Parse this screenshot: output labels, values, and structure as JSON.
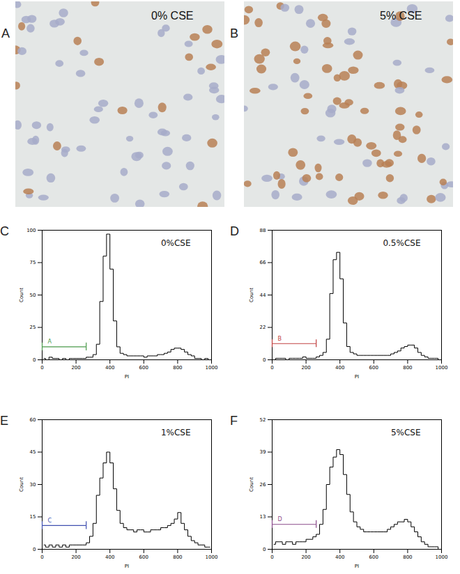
{
  "images": [
    {
      "panel": "A",
      "label": "0% CSE"
    },
    {
      "panel": "B",
      "label": "5% CSE"
    }
  ],
  "chart_data": [
    {
      "panel": "C",
      "type": "line",
      "title": "0%CSE",
      "xlabel": "PI",
      "ylabel": "Count",
      "xlim": [
        0,
        1000
      ],
      "xticks": [
        0,
        200,
        400,
        600,
        800,
        1000
      ],
      "ylim": [
        0,
        100
      ],
      "yticks": [
        0,
        25,
        50,
        75,
        100
      ],
      "x": [
        10,
        30,
        50,
        70,
        90,
        110,
        130,
        150,
        170,
        190,
        210,
        230,
        250,
        270,
        290,
        310,
        330,
        350,
        370,
        390,
        410,
        430,
        450,
        470,
        490,
        510,
        530,
        550,
        570,
        590,
        610,
        630,
        650,
        670,
        690,
        710,
        730,
        750,
        770,
        790,
        810,
        830,
        850,
        870,
        890,
        910,
        930,
        950,
        970,
        990
      ],
      "values": [
        1,
        0,
        2,
        1,
        1,
        0,
        1,
        0,
        1,
        1,
        1,
        1,
        1,
        2,
        2,
        4,
        12,
        45,
        80,
        97,
        70,
        30,
        10,
        5,
        4,
        3,
        3,
        3,
        3,
        3,
        2,
        3,
        3,
        3,
        4,
        4,
        5,
        6,
        8,
        9,
        9,
        8,
        6,
        4,
        3,
        1,
        1,
        0,
        1,
        0
      ],
      "color": "#000000",
      "annotations": [
        {
          "label": "A",
          "x": [
            0,
            260
          ],
          "y": 10,
          "color": "#4a9a4a"
        }
      ]
    },
    {
      "panel": "D",
      "type": "line",
      "title": "0.5%CSE",
      "xlabel": "PI",
      "ylabel": "Count",
      "xlim": [
        0,
        1000
      ],
      "xticks": [
        0,
        200,
        400,
        600,
        800,
        1000
      ],
      "ylim": [
        0,
        88
      ],
      "yticks": [
        0,
        22,
        44,
        66,
        88
      ],
      "x": [
        10,
        30,
        50,
        70,
        90,
        110,
        130,
        150,
        170,
        190,
        210,
        230,
        250,
        270,
        290,
        310,
        330,
        350,
        370,
        390,
        410,
        430,
        450,
        470,
        490,
        510,
        530,
        550,
        570,
        590,
        610,
        630,
        650,
        670,
        690,
        710,
        730,
        750,
        770,
        790,
        810,
        830,
        850,
        870,
        890,
        910,
        930,
        950,
        970,
        990
      ],
      "values": [
        0,
        1,
        1,
        1,
        0,
        1,
        1,
        1,
        1,
        2,
        1,
        1,
        1,
        2,
        3,
        5,
        14,
        45,
        68,
        73,
        55,
        25,
        9,
        5,
        4,
        3,
        3,
        3,
        3,
        3,
        3,
        3,
        3,
        3,
        3,
        4,
        5,
        6,
        8,
        9,
        10,
        10,
        8,
        5,
        3,
        2,
        1,
        1,
        1,
        0
      ],
      "color": "#000000",
      "annotations": [
        {
          "label": "B",
          "x": [
            0,
            260
          ],
          "y": 11,
          "color": "#c04040"
        }
      ]
    },
    {
      "panel": "E",
      "type": "line",
      "title": "1%CSE",
      "xlabel": "PI",
      "ylabel": "Count",
      "xlim": [
        0,
        1000
      ],
      "xticks": [
        0,
        200,
        400,
        600,
        800,
        1000
      ],
      "ylim": [
        0,
        60
      ],
      "yticks": [
        0,
        15,
        30,
        45,
        60
      ],
      "x": [
        10,
        30,
        50,
        70,
        90,
        110,
        130,
        150,
        170,
        190,
        210,
        230,
        250,
        270,
        290,
        310,
        330,
        350,
        370,
        390,
        410,
        430,
        450,
        470,
        490,
        510,
        530,
        550,
        570,
        590,
        610,
        630,
        650,
        670,
        690,
        710,
        730,
        750,
        770,
        790,
        810,
        830,
        850,
        870,
        890,
        910,
        930,
        950,
        970,
        990
      ],
      "values": [
        2,
        1,
        2,
        1,
        2,
        1,
        2,
        1,
        2,
        2,
        2,
        2,
        2,
        3,
        6,
        12,
        25,
        33,
        40,
        45,
        40,
        28,
        18,
        12,
        10,
        9,
        9,
        8,
        9,
        9,
        8,
        8,
        9,
        9,
        9,
        10,
        10,
        11,
        12,
        14,
        17,
        12,
        9,
        6,
        4,
        3,
        2,
        2,
        1,
        1
      ],
      "color": "#000000",
      "annotations": [
        {
          "label": "C",
          "x": [
            0,
            260
          ],
          "y": 11,
          "color": "#4050b0"
        }
      ]
    },
    {
      "panel": "F",
      "type": "line",
      "title": "5%CSE",
      "xlabel": "PI",
      "ylabel": "Count",
      "xlim": [
        0,
        1000
      ],
      "xticks": [
        0,
        200,
        400,
        600,
        800,
        1000
      ],
      "ylim": [
        0,
        52
      ],
      "yticks": [
        0,
        13,
        26,
        39,
        52
      ],
      "x": [
        10,
        30,
        50,
        70,
        90,
        110,
        130,
        150,
        170,
        190,
        210,
        230,
        250,
        270,
        290,
        310,
        330,
        350,
        370,
        390,
        410,
        430,
        450,
        470,
        490,
        510,
        530,
        550,
        570,
        590,
        610,
        630,
        650,
        670,
        690,
        710,
        730,
        750,
        770,
        790,
        810,
        830,
        850,
        870,
        890,
        910,
        930,
        950,
        970,
        990
      ],
      "values": [
        2,
        3,
        3,
        2,
        3,
        3,
        2,
        3,
        3,
        3,
        4,
        4,
        5,
        6,
        10,
        16,
        26,
        33,
        37,
        40,
        38,
        30,
        22,
        15,
        11,
        9,
        8,
        7,
        7,
        7,
        7,
        7,
        7,
        7,
        8,
        9,
        10,
        11,
        11,
        12,
        11,
        9,
        7,
        5,
        3,
        2,
        1,
        1,
        1,
        0
      ],
      "color": "#000000",
      "annotations": [
        {
          "label": "D",
          "x": [
            0,
            260
          ],
          "y": 10,
          "color": "#8a4a8a"
        }
      ]
    }
  ]
}
